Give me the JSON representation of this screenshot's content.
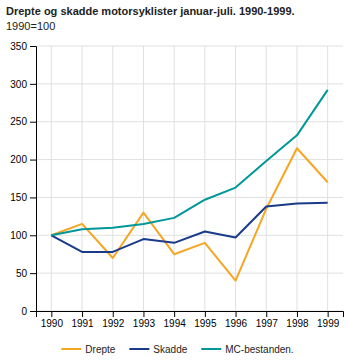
{
  "chart_data": {
    "type": "line",
    "title": "Drepte og skadde motorsyklister januar-juli. 1990-1999.",
    "subtitle": "1990=100",
    "x": [
      1990,
      1991,
      1992,
      1993,
      1994,
      1995,
      1996,
      1997,
      1998,
      1999
    ],
    "series": [
      {
        "name": "Drepte",
        "color": "#f5a623",
        "values": [
          100,
          115,
          70,
          130,
          75,
          90,
          40,
          135,
          215,
          170
        ]
      },
      {
        "name": "Skadde",
        "color": "#1a3a8c",
        "values": [
          100,
          78,
          78,
          95,
          90,
          105,
          97,
          138,
          142,
          143
        ]
      },
      {
        "name": "MC-bestanden.",
        "color": "#00979a",
        "values": [
          100,
          108,
          110,
          115,
          123,
          147,
          163,
          198,
          232,
          292
        ]
      }
    ],
    "xlim": [
      1989.5,
      1999.5
    ],
    "xticks": [
      1990,
      1991,
      1992,
      1993,
      1994,
      1995,
      1996,
      1997,
      1998,
      1999
    ],
    "ylim": [
      0,
      350
    ],
    "yticks": [
      0,
      50,
      100,
      150,
      200,
      250,
      300,
      350
    ],
    "grid": true,
    "legend": "bottom"
  }
}
